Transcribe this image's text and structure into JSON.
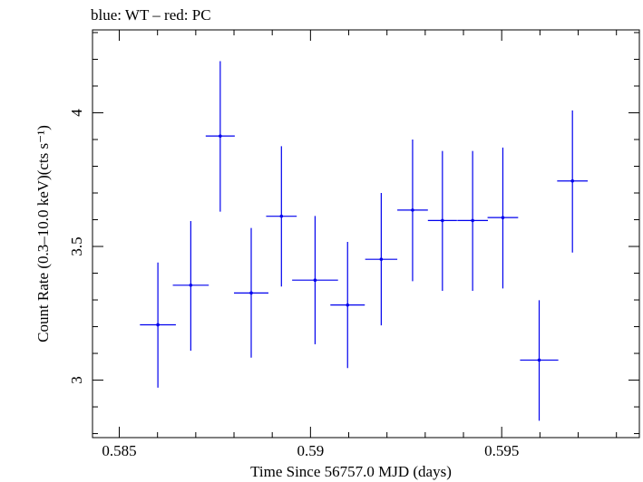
{
  "chart_data": {
    "type": "scatter",
    "title": "blue: WT – red: PC",
    "xlabel": "Time Since 56757.0 MJD (days)",
    "ylabel": "Count Rate (0.3–10.0 keV)(cts s⁻¹)",
    "xlim": [
      0.5843,
      0.5986
    ],
    "ylim": [
      2.785,
      4.31
    ],
    "x_ticks": [
      0.585,
      0.59,
      0.595
    ],
    "x_tick_labels": [
      "0.585",
      "0.59",
      "0.595"
    ],
    "y_ticks": [
      3,
      3.5,
      4
    ],
    "y_tick_labels": [
      "3",
      "3.5",
      "4"
    ],
    "grid": false,
    "series": [
      {
        "color": "#0000ee",
        "points": [
          {
            "x": 0.58601,
            "xerr": 0.00047,
            "y": 3.207,
            "yerr_lo": 0.235,
            "yerr_hi": 0.233
          },
          {
            "x": 0.58687,
            "xerr": 0.00047,
            "y": 3.355,
            "yerr_lo": 0.245,
            "yerr_hi": 0.24
          },
          {
            "x": 0.58764,
            "xerr": 0.00038,
            "y": 3.913,
            "yerr_lo": 0.283,
            "yerr_hi": 0.28
          },
          {
            "x": 0.58845,
            "xerr": 0.00045,
            "y": 3.326,
            "yerr_lo": 0.242,
            "yerr_hi": 0.243
          },
          {
            "x": 0.58924,
            "xerr": 0.0004,
            "y": 3.613,
            "yerr_lo": 0.263,
            "yerr_hi": 0.262
          },
          {
            "x": 0.59012,
            "xerr": 0.0006,
            "y": 3.374,
            "yerr_lo": 0.24,
            "yerr_hi": 0.24
          },
          {
            "x": 0.59097,
            "xerr": 0.00045,
            "y": 3.281,
            "yerr_lo": 0.236,
            "yerr_hi": 0.236
          },
          {
            "x": 0.59185,
            "xerr": 0.00042,
            "y": 3.452,
            "yerr_lo": 0.247,
            "yerr_hi": 0.248
          },
          {
            "x": 0.59267,
            "xerr": 0.0004,
            "y": 3.636,
            "yerr_lo": 0.266,
            "yerr_hi": 0.264
          },
          {
            "x": 0.59345,
            "xerr": 0.00038,
            "y": 3.597,
            "yerr_lo": 0.263,
            "yerr_hi": 0.26
          },
          {
            "x": 0.59424,
            "xerr": 0.0004,
            "y": 3.597,
            "yerr_lo": 0.263,
            "yerr_hi": 0.26
          },
          {
            "x": 0.59503,
            "xerr": 0.0004,
            "y": 3.608,
            "yerr_lo": 0.265,
            "yerr_hi": 0.262
          },
          {
            "x": 0.59598,
            "xerr": 0.0005,
            "y": 3.075,
            "yerr_lo": 0.227,
            "yerr_hi": 0.224
          },
          {
            "x": 0.59685,
            "xerr": 0.0004,
            "y": 3.745,
            "yerr_lo": 0.268,
            "yerr_hi": 0.264
          }
        ]
      }
    ]
  }
}
